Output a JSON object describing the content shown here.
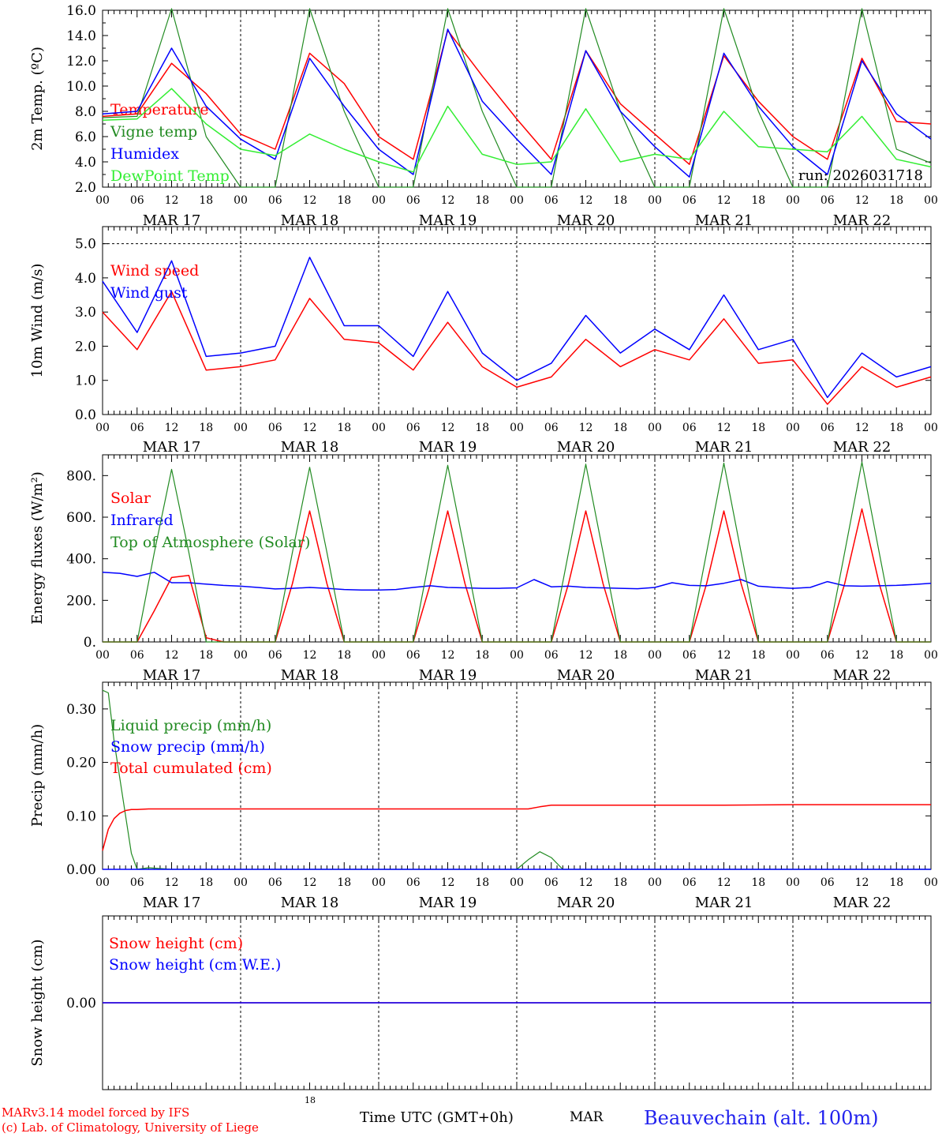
{
  "x_ticks": [
    "00",
    "06",
    "12",
    "18",
    "00",
    "06",
    "12",
    "18",
    "00",
    "06",
    "12",
    "18",
    "00",
    "06",
    "12",
    "18",
    "00",
    "06",
    "12",
    "18",
    "00",
    "06",
    "12",
    "18",
    "00"
  ],
  "day_labels": [
    "MAR 17",
    "MAR 18",
    "MAR 19",
    "MAR 20",
    "MAR 21",
    "MAR 22"
  ],
  "colors": {
    "red": "#ff0000",
    "green": "#228b22",
    "blue": "#0000ff",
    "lightgreen": "#33ee33",
    "axis": "#000000"
  },
  "chart_data": [
    {
      "type": "line",
      "ylabel": "2m Temp. (ºC)",
      "ylim": [
        2,
        16
      ],
      "yticks": [
        2,
        4,
        6,
        8,
        10,
        12,
        14,
        16
      ],
      "ytick_labels": [
        "2.0",
        "4.0",
        "6.0",
        "8.0",
        "10.0",
        "12.0",
        "14.0",
        "16.0"
      ],
      "hours": [
        0,
        6,
        12,
        18,
        24,
        30,
        36,
        42,
        48,
        54,
        60,
        66,
        72,
        78,
        84,
        90,
        96,
        102,
        108,
        114,
        120,
        126,
        132,
        138,
        144
      ],
      "annotation": "run: 2026031718",
      "series": [
        {
          "name": "Temperature",
          "color": "red",
          "values": [
            7.6,
            7.8,
            11.8,
            9.4,
            6.2,
            5.0,
            12.6,
            10.2,
            6.0,
            4.2,
            14.4,
            10.8,
            7.4,
            4.2,
            12.8,
            8.6,
            6.2,
            3.8,
            12.4,
            8.8,
            6.0,
            4.2,
            12.2,
            7.2,
            7.0
          ]
        },
        {
          "name": "Vigne temp",
          "color": "green",
          "values": [
            7.5,
            7.6,
            16.5,
            6.0,
            2.0,
            1.5,
            16.5,
            8.0,
            1.5,
            1.0,
            16.5,
            8.0,
            1.5,
            1.0,
            16.5,
            8.0,
            1.5,
            1.0,
            16.5,
            8.0,
            1.5,
            1.0,
            16.5,
            5.0,
            3.9
          ]
        },
        {
          "name": "Humidex",
          "color": "blue",
          "values": [
            7.8,
            8.0,
            13.0,
            8.4,
            5.8,
            4.2,
            12.2,
            8.4,
            5.0,
            3.0,
            14.5,
            8.8,
            5.8,
            3.0,
            12.8,
            8.0,
            5.2,
            2.8,
            12.6,
            8.4,
            5.2,
            3.0,
            12.0,
            7.8,
            5.8
          ]
        },
        {
          "name": "DewPoint Temp",
          "color": "lightgreen",
          "values": [
            7.3,
            7.4,
            9.8,
            7.0,
            5.0,
            4.5,
            6.2,
            5.0,
            4.0,
            3.2,
            8.4,
            4.6,
            3.8,
            4.0,
            8.2,
            4.0,
            4.6,
            4.2,
            8.0,
            5.2,
            5.0,
            4.8,
            7.6,
            4.2,
            3.6
          ]
        }
      ]
    },
    {
      "type": "line",
      "ylabel": "10m Wind (m/s)",
      "ylim": [
        0,
        5.5
      ],
      "yticks": [
        0,
        1,
        2,
        3,
        4,
        5
      ],
      "ytick_labels": [
        "0.0",
        "1.0",
        "2.0",
        "3.0",
        "4.0",
        "5.0"
      ],
      "hours": [
        0,
        6,
        12,
        18,
        24,
        30,
        36,
        42,
        48,
        54,
        60,
        66,
        72,
        78,
        84,
        90,
        96,
        102,
        108,
        114,
        120,
        126,
        132,
        138,
        144
      ],
      "reference_line": 5.0,
      "series": [
        {
          "name": "Wind speed",
          "color": "red",
          "values": [
            3.0,
            1.9,
            3.6,
            1.3,
            1.4,
            1.6,
            3.4,
            2.2,
            2.1,
            1.3,
            2.7,
            1.4,
            0.8,
            1.1,
            2.2,
            1.4,
            1.9,
            1.6,
            2.8,
            1.5,
            1.6,
            0.3,
            1.4,
            0.8,
            1.1
          ]
        },
        {
          "name": "Wind gust",
          "color": "blue",
          "values": [
            3.9,
            2.4,
            4.5,
            1.7,
            1.8,
            2.0,
            4.6,
            2.6,
            2.6,
            1.7,
            3.6,
            1.8,
            1.0,
            1.5,
            2.9,
            1.8,
            2.5,
            1.9,
            3.5,
            1.9,
            2.2,
            0.5,
            1.8,
            1.1,
            1.4
          ]
        }
      ]
    },
    {
      "type": "line",
      "ylabel": "Energy fluxes (W/m²)",
      "ylim": [
        0,
        900
      ],
      "yticks": [
        0,
        200,
        400,
        600,
        800
      ],
      "ytick_labels": [
        "0.",
        "200.",
        "400.",
        "600.",
        "800."
      ],
      "hours": [
        0,
        3,
        6,
        9,
        12,
        15,
        18,
        21,
        24,
        27,
        30,
        33,
        36,
        39,
        42,
        45,
        48,
        51,
        54,
        57,
        60,
        63,
        66,
        69,
        72,
        75,
        78,
        81,
        84,
        87,
        90,
        93,
        96,
        99,
        102,
        105,
        108,
        111,
        114,
        117,
        120,
        123,
        126,
        129,
        132,
        135,
        138,
        141,
        144
      ],
      "series": [
        {
          "name": "Solar",
          "color": "red",
          "values": [
            0,
            0,
            0,
            150,
            310,
            320,
            20,
            0,
            0,
            0,
            0,
            280,
            630,
            280,
            0,
            0,
            0,
            0,
            0,
            280,
            630,
            280,
            0,
            0,
            0,
            0,
            0,
            280,
            630,
            280,
            0,
            0,
            0,
            0,
            0,
            280,
            630,
            280,
            0,
            0,
            0,
            0,
            0,
            280,
            640,
            280,
            0,
            0,
            0
          ]
        },
        {
          "name": "Infrared",
          "color": "blue",
          "values": [
            335,
            330,
            315,
            335,
            285,
            285,
            278,
            272,
            268,
            262,
            255,
            258,
            262,
            258,
            252,
            250,
            250,
            252,
            262,
            270,
            262,
            260,
            258,
            258,
            260,
            300,
            265,
            268,
            262,
            260,
            258,
            256,
            262,
            285,
            272,
            270,
            282,
            300,
            268,
            262,
            258,
            262,
            290,
            270,
            268,
            270,
            272,
            276,
            282
          ]
        },
        {
          "name": "Top of Atmosphere (Solar)",
          "color": "green",
          "values": [
            0,
            0,
            0,
            430,
            830,
            430,
            0,
            0,
            0,
            0,
            0,
            430,
            840,
            430,
            0,
            0,
            0,
            0,
            0,
            430,
            850,
            430,
            0,
            0,
            0,
            0,
            0,
            430,
            855,
            430,
            0,
            0,
            0,
            0,
            0,
            430,
            860,
            430,
            0,
            0,
            0,
            0,
            0,
            430,
            865,
            430,
            0,
            0,
            0
          ]
        }
      ]
    },
    {
      "type": "line",
      "ylabel": "Precip (mm/h)",
      "ylim": [
        0,
        0.35
      ],
      "yticks": [
        0,
        0.1,
        0.2,
        0.3
      ],
      "ytick_labels": [
        "0.00",
        "0.10",
        "0.20",
        "0.30"
      ],
      "hours": [
        0,
        1,
        2,
        3,
        4,
        5,
        6,
        8,
        12,
        18,
        24,
        36,
        48,
        60,
        72,
        74,
        76,
        78,
        80,
        82,
        84,
        96,
        108,
        120,
        132,
        144
      ],
      "series": [
        {
          "name": "Liquid precip (mm/h)",
          "color": "green",
          "values": [
            0.335,
            0.33,
            0.24,
            0.17,
            0.1,
            0.03,
            0,
            0.003,
            0,
            0,
            0,
            0,
            0,
            0,
            0,
            0.018,
            0.033,
            0.022,
            0,
            0,
            0,
            0,
            0,
            0,
            0,
            0
          ]
        },
        {
          "name": "Snow precip (mm/h)",
          "color": "blue",
          "values": [
            0,
            0,
            0,
            0,
            0,
            0,
            0,
            0,
            0,
            0,
            0,
            0,
            0,
            0,
            0,
            0,
            0,
            0,
            0,
            0,
            0,
            0,
            0,
            0,
            0,
            0
          ]
        },
        {
          "name": "Total cumulated (cm)",
          "color": "red",
          "values": [
            0.035,
            0.075,
            0.095,
            0.105,
            0.11,
            0.112,
            0.112,
            0.113,
            0.113,
            0.113,
            0.113,
            0.113,
            0.113,
            0.113,
            0.113,
            0.113,
            0.117,
            0.12,
            0.12,
            0.12,
            0.12,
            0.12,
            0.12,
            0.121,
            0.121,
            0.121
          ]
        }
      ]
    },
    {
      "type": "line",
      "ylabel": "Snow height (cm)",
      "ylim": [
        -1,
        1
      ],
      "yticks": [
        0
      ],
      "ytick_labels": [
        "0.00"
      ],
      "hours": [
        0,
        144
      ],
      "series": [
        {
          "name": "Snow height (cm)",
          "color": "red",
          "values": [
            0,
            0
          ]
        },
        {
          "name": "Snow height (cm W.E.)",
          "color": "blue",
          "values": [
            0,
            0
          ]
        }
      ]
    }
  ],
  "footer": {
    "model": "MARv3.14 model forced by IFS",
    "lab": "(c) Lab. of Climatology, University of Liege",
    "small_18": "18",
    "time_label": "Time UTC (GMT+0h)",
    "month_label": "MAR",
    "station": "Beauvechain (alt. 100m)"
  }
}
